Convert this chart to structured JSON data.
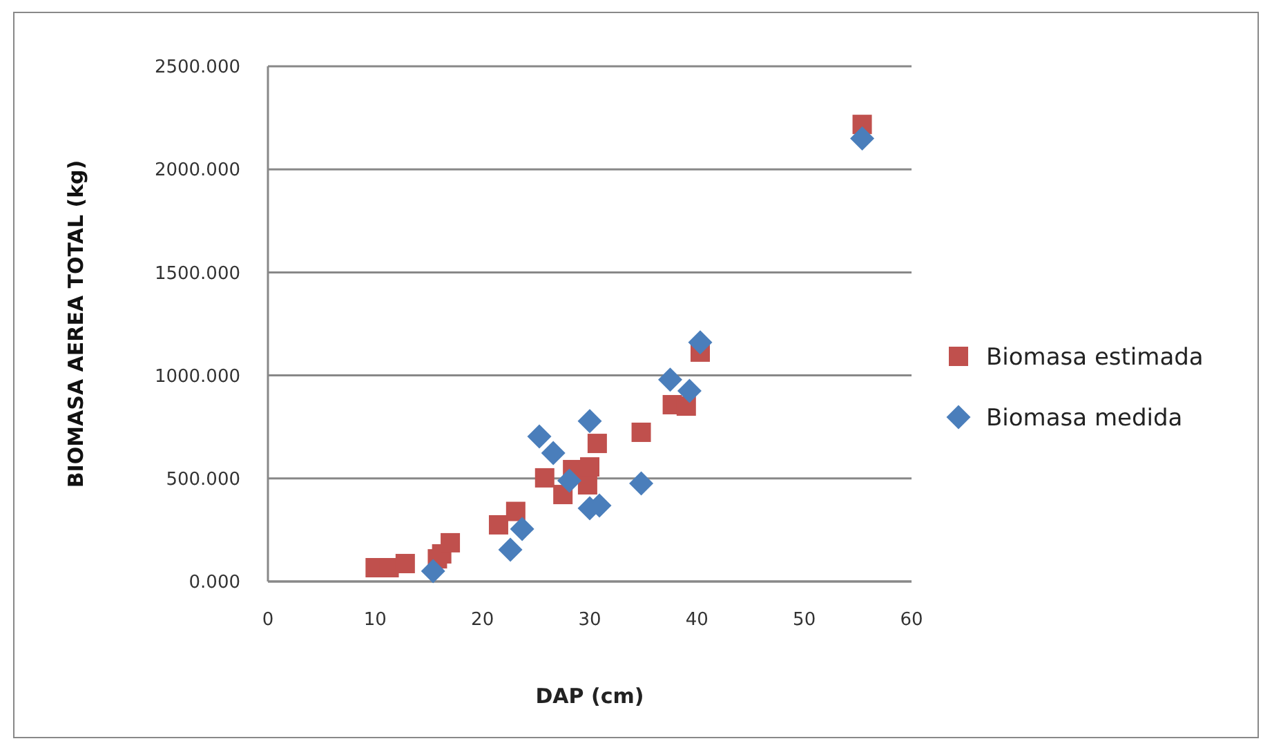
{
  "chart_data": {
    "type": "scatter",
    "xlabel": "DAP  (cm)",
    "ylabel": "BIOMASA AEREA TOTAL  (kg)",
    "xlim": [
      0,
      60
    ],
    "xticks": [
      0,
      10,
      20,
      30,
      40,
      50,
      60
    ],
    "ylim": [
      0,
      2500
    ],
    "yticks": [
      {
        "value": 0,
        "label": "0.000"
      },
      {
        "value": 500,
        "label": "500.000"
      },
      {
        "value": 1000,
        "label": "1000.000"
      },
      {
        "value": 1500,
        "label": "1500.000"
      },
      {
        "value": 2000,
        "label": "2000.000"
      },
      {
        "value": 2500,
        "label": "2500.000"
      }
    ],
    "grid": "y",
    "legend": "right",
    "series": [
      {
        "name": "Biomasa estimada",
        "color": "#c0504d",
        "marker": "square",
        "x": [
          10.0,
          11.3,
          12.8,
          15.8,
          16.2,
          17.0,
          21.5,
          23.1,
          25.8,
          27.5,
          28.4,
          29.8,
          30.0,
          30.7,
          34.8,
          37.7,
          39.0,
          40.3,
          55.4
        ],
        "values": [
          67,
          67,
          87,
          110,
          134,
          188,
          275,
          340,
          503,
          422,
          543,
          469,
          556,
          670,
          724,
          858,
          851,
          1113,
          2218
        ]
      },
      {
        "name": "Biomasa medida",
        "color": "#4a7ebb",
        "marker": "diamond",
        "x": [
          15.4,
          22.6,
          23.7,
          25.3,
          26.6,
          28.1,
          30.0,
          30.0,
          30.9,
          34.8,
          37.5,
          39.3,
          40.3,
          55.4
        ],
        "values": [
          50,
          154,
          255,
          704,
          623,
          489,
          778,
          355,
          369,
          476,
          979,
          925,
          1160,
          2150
        ]
      }
    ]
  }
}
